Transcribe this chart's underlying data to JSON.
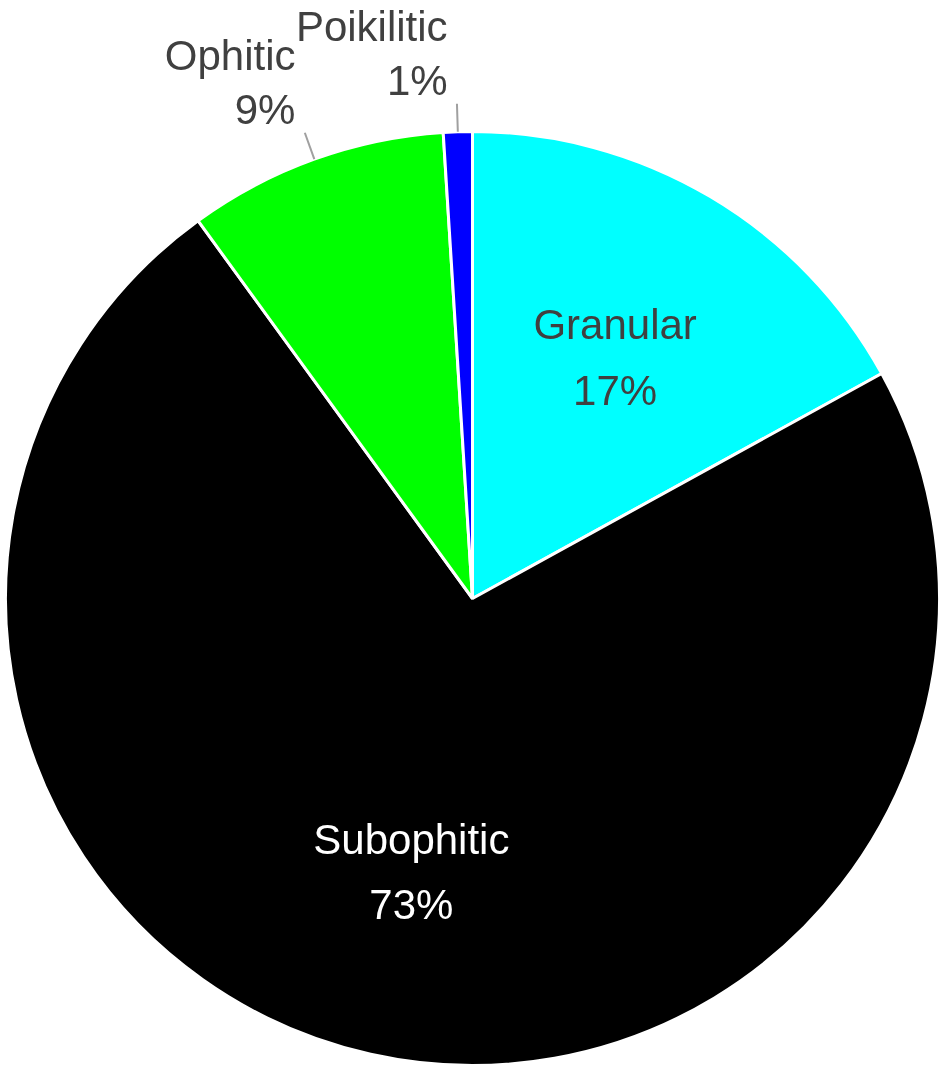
{
  "chart_data": {
    "type": "pie",
    "categories": [
      "Granular",
      "Subophitic",
      "Ophitic",
      "Poikilitic"
    ],
    "values": [
      17,
      73,
      9,
      1
    ],
    "value_labels": [
      "17%",
      "73%",
      "9%",
      "1%"
    ],
    "colors": [
      "#00ffff",
      "#000000",
      "#00ff00",
      "#0000ff"
    ]
  }
}
